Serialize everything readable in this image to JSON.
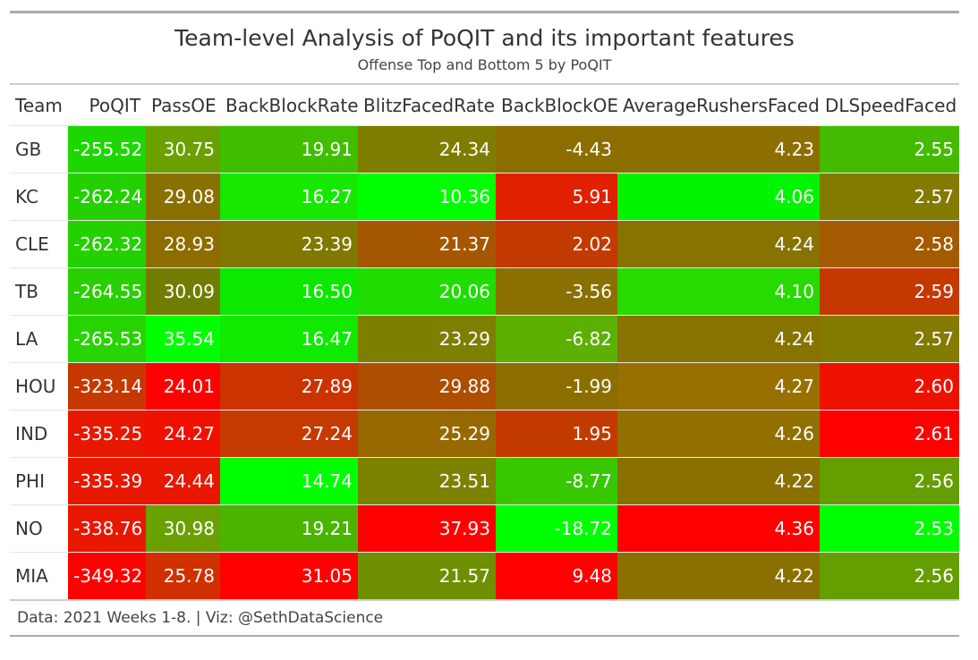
{
  "title": "Team-level Analysis of PoQIT and its important features",
  "subtitle": "Offense Top and Bottom 5 by PoQIT",
  "source": "Data: 2021 Weeks 1-8. | Viz: @SethDataScience",
  "chart_data": {
    "type": "table",
    "columns": [
      "Team",
      "PoQIT",
      "PassOE",
      "BackBlockRate",
      "BlitzFacedRate",
      "BackBlockOE",
      "AverageRushersFaced",
      "DLSpeedFaced"
    ],
    "rows": [
      [
        "GB",
        "-255.52",
        "30.75",
        "19.91",
        "24.34",
        "-4.43",
        "4.23",
        "2.55"
      ],
      [
        "KC",
        "-262.24",
        "29.08",
        "16.27",
        "10.36",
        "5.91",
        "4.06",
        "2.57"
      ],
      [
        "CLE",
        "-262.32",
        "28.93",
        "23.39",
        "21.37",
        "2.02",
        "4.24",
        "2.58"
      ],
      [
        "TB",
        "-264.55",
        "30.09",
        "16.50",
        "20.06",
        "-3.56",
        "4.10",
        "2.59"
      ],
      [
        "LA",
        "-265.53",
        "35.54",
        "16.47",
        "23.29",
        "-6.82",
        "4.24",
        "2.57"
      ],
      [
        "HOU",
        "-323.14",
        "24.01",
        "27.89",
        "29.88",
        "-1.99",
        "4.27",
        "2.60"
      ],
      [
        "IND",
        "-335.25",
        "24.27",
        "27.24",
        "25.29",
        "1.95",
        "4.26",
        "2.61"
      ],
      [
        "PHI",
        "-335.39",
        "24.44",
        "14.74",
        "23.51",
        "-8.77",
        "4.22",
        "2.56"
      ],
      [
        "NO",
        "-338.76",
        "30.98",
        "19.21",
        "37.93",
        "-18.72",
        "4.36",
        "2.53"
      ],
      [
        "MIA",
        "-349.32",
        "25.78",
        "31.05",
        "21.57",
        "9.48",
        "4.22",
        "2.56"
      ]
    ],
    "cell_colors": [
      [
        "#1ed700",
        "#6aa000",
        "#3fbf00",
        "#7f7d00",
        "#8c6e00",
        "#8d6f00",
        "#44bb00"
      ],
      [
        "#24d000",
        "#8a7000",
        "#17e800",
        "#00ff00",
        "#e12000",
        "#00f400",
        "#837a00"
      ],
      [
        "#24d000",
        "#8d6d00",
        "#807800",
        "#a55600",
        "#c23a00",
        "#887300",
        "#a35a00"
      ],
      [
        "#28d000",
        "#717d00",
        "#0ce800",
        "#20dc00",
        "#8a7000",
        "#27da00",
        "#c53800"
      ],
      [
        "#28d400",
        "#00ff00",
        "#10ea00",
        "#7d7f00",
        "#5cb000",
        "#887300",
        "#837a00"
      ],
      [
        "#c53800",
        "#ff0000",
        "#cb3300",
        "#ae4e00",
        "#8c6e00",
        "#997000",
        "#ee1100"
      ],
      [
        "#e81700",
        "#f01000",
        "#c43a00",
        "#976800",
        "#c23a00",
        "#927000",
        "#ff0000"
      ],
      [
        "#e91600",
        "#e91600",
        "#00ff00",
        "#7a8200",
        "#37c800",
        "#8a7000",
        "#649e00"
      ],
      [
        "#e81700",
        "#6aa000",
        "#4bb400",
        "#ff0000",
        "#00ff00",
        "#ff0000",
        "#00ff00"
      ],
      [
        "#ff0000",
        "#d03000",
        "#ff0000",
        "#6e9000",
        "#ff0000",
        "#8a7000",
        "#649e00"
      ]
    ]
  }
}
